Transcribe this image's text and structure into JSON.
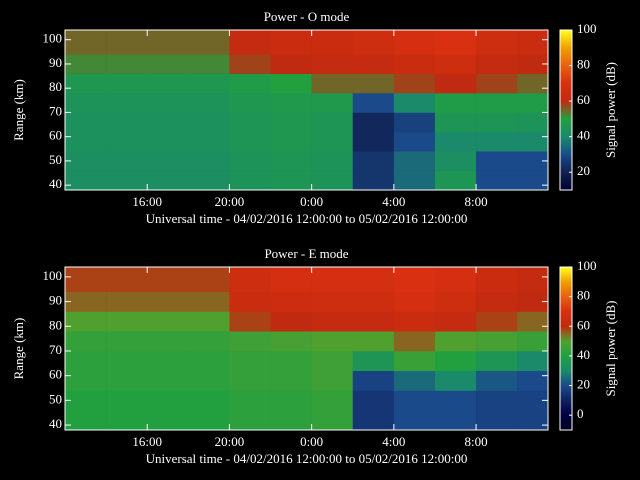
{
  "chart_data": [
    {
      "type": "heatmap",
      "title": "Power - O mode",
      "xlabel": "Universal time - 04/02/2016 12:00:00 to 05/02/2016 12:00:00",
      "ylabel": "Range (km)",
      "colorbar_label": "Signal power (dB)",
      "x_bins": [
        0,
        2,
        4,
        6,
        8,
        10,
        12,
        14,
        16,
        18,
        20,
        22,
        23.5
      ],
      "y_bins": [
        38,
        46,
        54,
        62,
        70,
        78,
        86,
        94,
        104
      ],
      "values": [
        [
          42,
          42,
          43,
          43,
          44,
          46,
          52,
          55
        ],
        [
          42,
          42,
          43,
          43,
          44,
          46,
          52,
          55
        ],
        [
          42,
          42,
          43,
          43,
          44,
          46,
          52,
          55
        ],
        [
          42,
          42,
          43,
          43,
          44,
          46,
          52,
          55
        ],
        [
          44,
          44,
          45,
          45,
          46,
          48,
          58,
          62
        ],
        [
          45,
          45,
          46,
          46,
          47,
          50,
          60,
          64
        ],
        [
          44,
          44,
          45,
          45,
          47,
          55,
          62,
          64
        ],
        [
          25,
          25,
          22,
          22,
          30,
          55,
          62,
          66
        ],
        [
          35,
          35,
          30,
          28,
          40,
          58,
          64,
          68
        ],
        [
          45,
          42,
          40,
          45,
          48,
          60,
          66,
          70
        ],
        [
          30,
          30,
          40,
          45,
          48,
          58,
          62,
          66
        ],
        [
          30,
          30,
          40,
          44,
          48,
          55,
          60,
          64
        ]
      ],
      "xlim": [
        0,
        23.5
      ],
      "xticks": [
        {
          "value": 4,
          "label": "16:00"
        },
        {
          "value": 8,
          "label": "20:00"
        },
        {
          "value": 12,
          "label": "0:00"
        },
        {
          "value": 16,
          "label": "4:00"
        },
        {
          "value": 20,
          "label": "8:00"
        }
      ],
      "ylim": [
        38,
        104
      ],
      "yticks": [
        40,
        50,
        60,
        70,
        80,
        90,
        100
      ],
      "zlim": [
        10,
        100
      ],
      "zticks": [
        20,
        40,
        60,
        80,
        100
      ],
      "colors": [
        "#000030",
        "#102050",
        "#1a4a8a",
        "#1a8a6a",
        "#22a040",
        "#c02a10",
        "#d83010",
        "#e86010",
        "#f0a000",
        "#ffff20"
      ]
    },
    {
      "type": "heatmap",
      "title": "Power - E mode",
      "xlabel": "Universal time - 04/02/2016 12:00:00 to 05/02/2016 12:00:00",
      "ylabel": "Range (km)",
      "colorbar_label": "Signal power (dB)",
      "x_bins": [
        0,
        2,
        4,
        6,
        8,
        10,
        12,
        14,
        16,
        18,
        20,
        22,
        23.5
      ],
      "y_bins": [
        38,
        46,
        54,
        62,
        70,
        78,
        86,
        94,
        104
      ],
      "values": [
        [
          40,
          40,
          42,
          42,
          44,
          50,
          55,
          58
        ],
        [
          40,
          40,
          42,
          42,
          44,
          50,
          55,
          58
        ],
        [
          40,
          40,
          42,
          42,
          44,
          50,
          55,
          58
        ],
        [
          40,
          40,
          42,
          42,
          44,
          50,
          55,
          58
        ],
        [
          42,
          42,
          44,
          44,
          46,
          58,
          64,
          66
        ],
        [
          42,
          42,
          44,
          44,
          48,
          60,
          65,
          68
        ],
        [
          44,
          44,
          46,
          46,
          50,
          62,
          66,
          68
        ],
        [
          15,
          15,
          18,
          35,
          50,
          62,
          66,
          68
        ],
        [
          20,
          20,
          25,
          45,
          55,
          64,
          68,
          70
        ],
        [
          20,
          20,
          30,
          40,
          50,
          62,
          66,
          68
        ],
        [
          18,
          18,
          22,
          35,
          48,
          58,
          62,
          64
        ],
        [
          18,
          18,
          20,
          30,
          45,
          55,
          60,
          62
        ]
      ],
      "xlim": [
        0,
        23.5
      ],
      "xticks": [
        {
          "value": 4,
          "label": "16:00"
        },
        {
          "value": 8,
          "label": "20:00"
        },
        {
          "value": 12,
          "label": "0:00"
        },
        {
          "value": 16,
          "label": "4:00"
        },
        {
          "value": 20,
          "label": "8:00"
        }
      ],
      "ylim": [
        38,
        104
      ],
      "yticks": [
        40,
        50,
        60,
        70,
        80,
        90,
        100
      ],
      "zlim": [
        -10,
        100
      ],
      "zticks": [
        0,
        20,
        40,
        60,
        80,
        100
      ],
      "colors": [
        "#000020",
        "#000040",
        "#102060",
        "#1a4a8a",
        "#1a8a6a",
        "#22a040",
        "#50a030",
        "#c02a10",
        "#d83010",
        "#e86010",
        "#f0a000",
        "#ffff20"
      ]
    }
  ]
}
